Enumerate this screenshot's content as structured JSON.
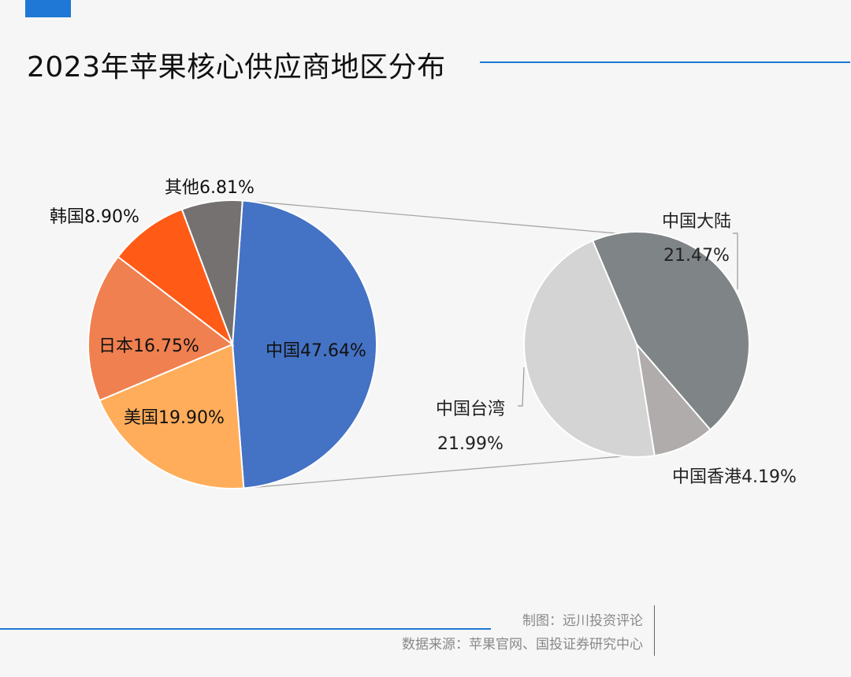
{
  "page": {
    "title": "2023年苹果核心供应商地区分布",
    "colors": {
      "accent": "#1f78d6",
      "background": "#f6f6f6"
    }
  },
  "chart_data": {
    "type": "pie",
    "subtype": "pie-of-pie",
    "title": "2023年苹果核心供应商地区分布",
    "main": [
      {
        "name": "中国",
        "value": 47.64,
        "label": "中国47.64%",
        "color": "#4472c4"
      },
      {
        "name": "美国",
        "value": 19.9,
        "label": "美国19.90%",
        "color": "#ffad5b"
      },
      {
        "name": "日本",
        "value": 16.75,
        "label": "日本16.75%",
        "color": "#f08050"
      },
      {
        "name": "韩国",
        "value": 8.9,
        "label": "韩国8.90%",
        "color": "#ff5b17"
      },
      {
        "name": "其他",
        "value": 6.81,
        "label": "其他6.81%",
        "color": "#757171"
      }
    ],
    "breakdown_of": "中国",
    "secondary": [
      {
        "name": "中国大陆",
        "value": 21.47,
        "label_name": "中国大陆",
        "label_value": "21.47%",
        "color": "#7f8486"
      },
      {
        "name": "中国香港",
        "value": 4.19,
        "label": "中国香港4.19%",
        "color": "#afacab"
      },
      {
        "name": "中国台湾",
        "value": 21.99,
        "label_name": "中国台湾",
        "label_value": "21.99%",
        "color": "#d4d4d4"
      }
    ]
  },
  "footer": {
    "made_by": "制图：远川投资评论",
    "source": "数据来源：苹果官网、国投证券研究中心"
  }
}
